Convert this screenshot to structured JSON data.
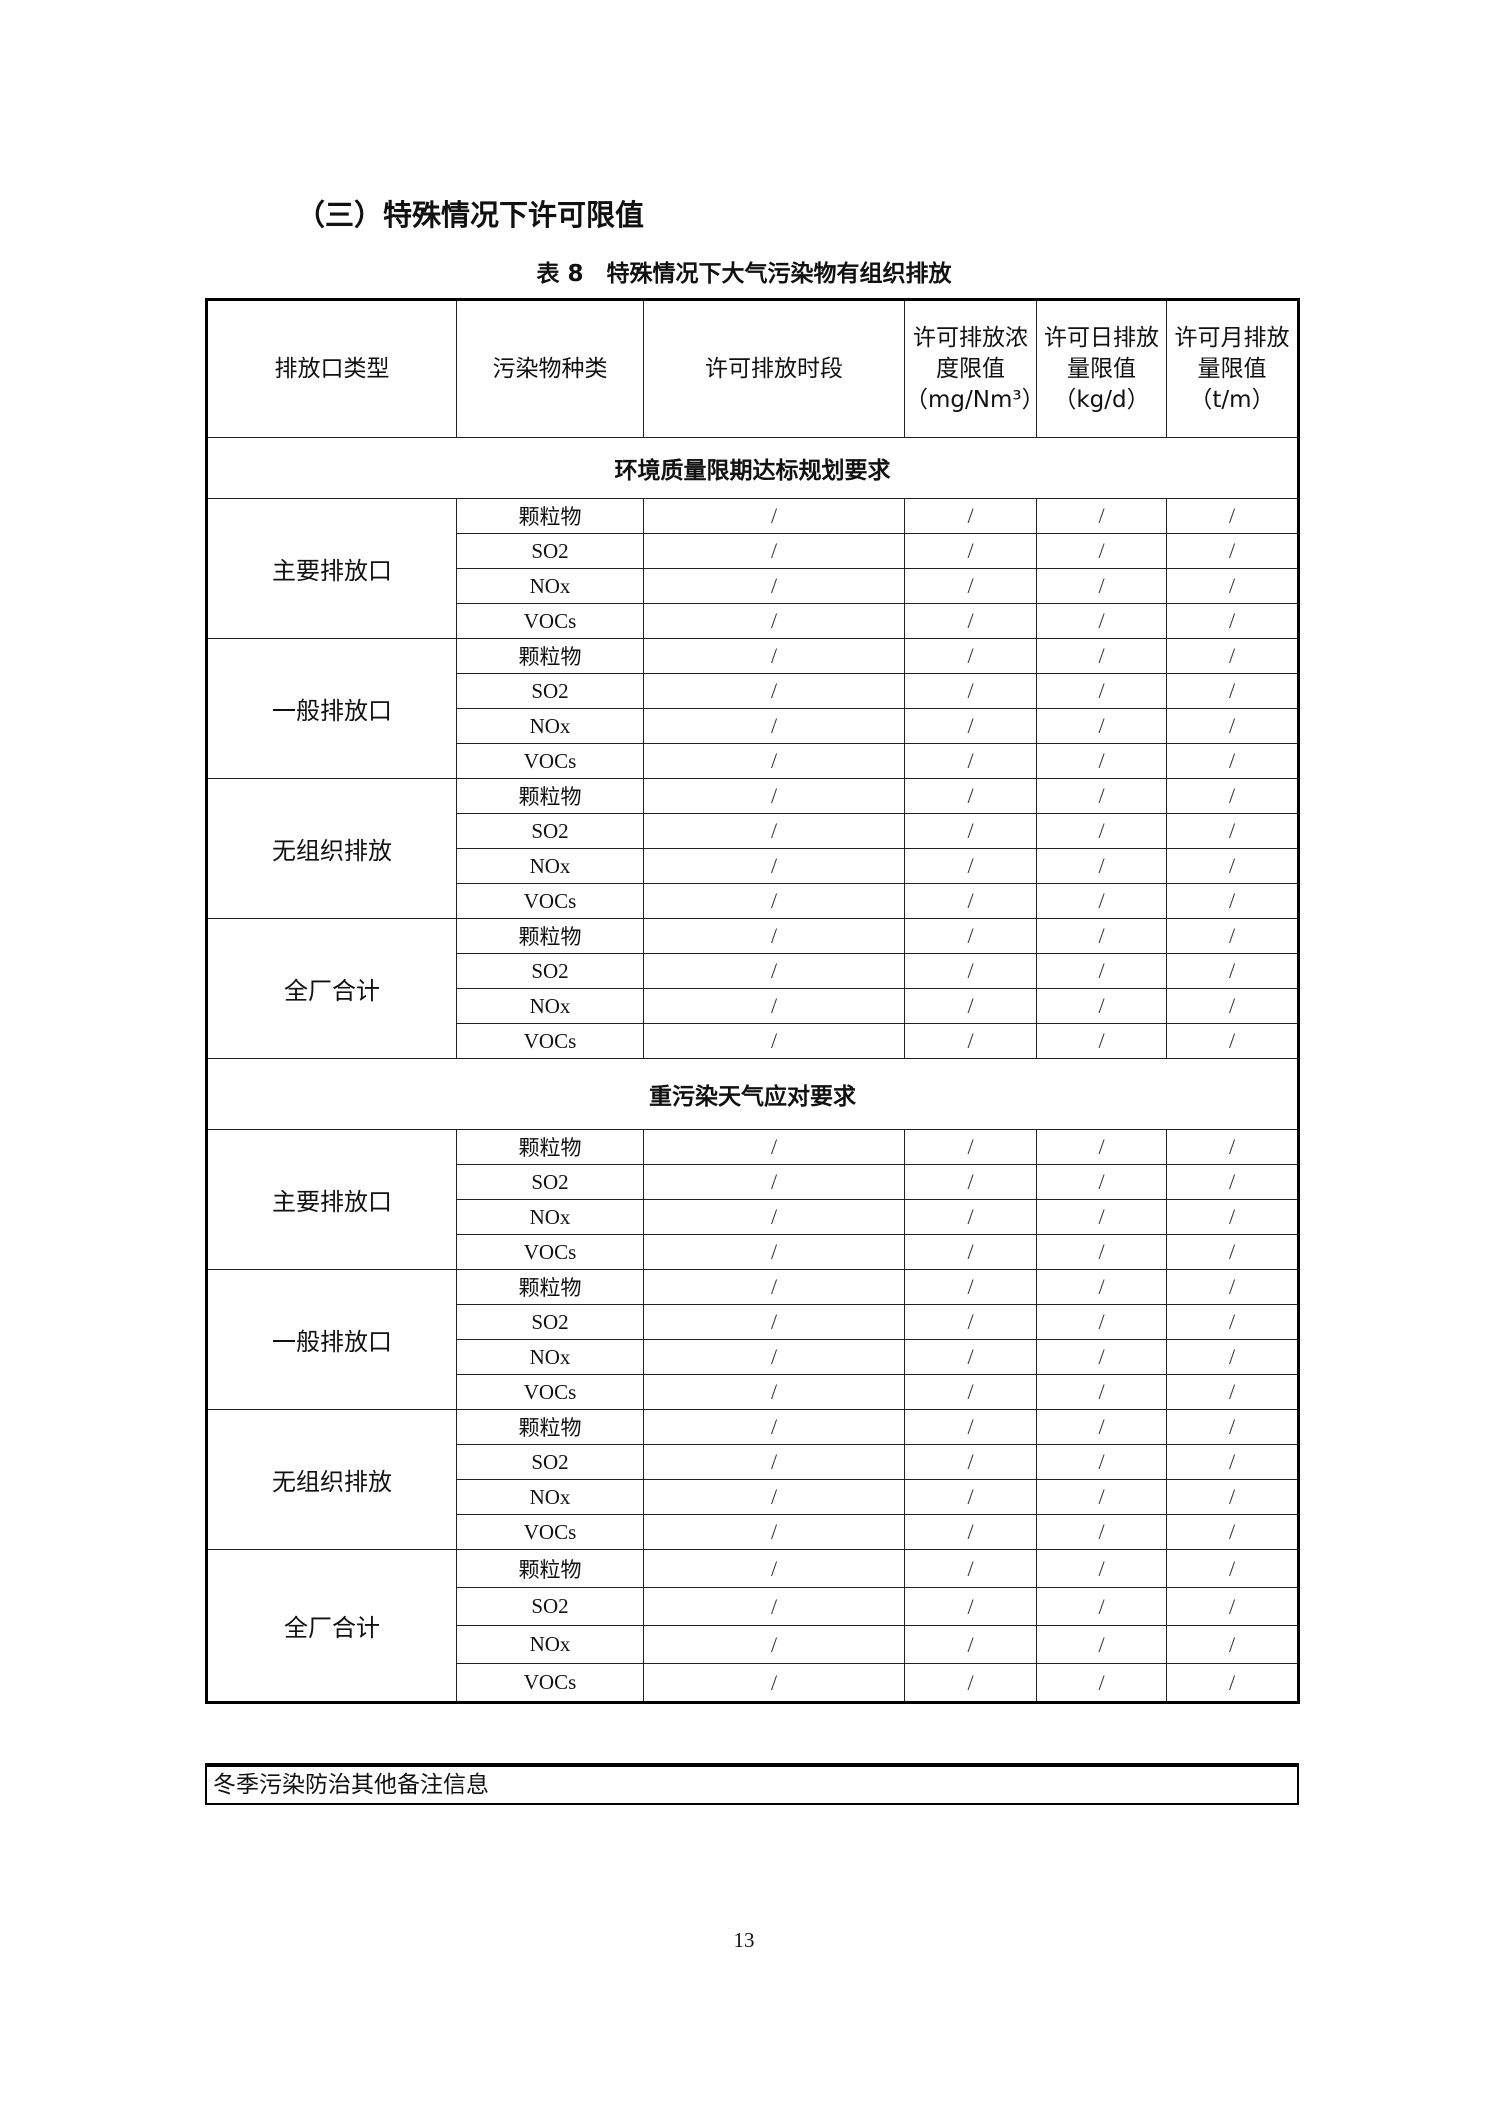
{
  "heading": "（三）特殊情况下许可限值",
  "caption": "表 8　特殊情况下大气污染物有组织排放",
  "table": {
    "headers": [
      "排放口类型",
      "污染物种类",
      "许可排放时段",
      "许可排放浓度限值（mg/Nm³）",
      "许可日排放量限值（kg/d）",
      "许可月排放量限值（t/m）"
    ],
    "sections": [
      {
        "title": "环境质量限期达标规划要求",
        "groups": [
          {
            "name": "主要排放口",
            "pollutants": [
              "颗粒物",
              "SO2",
              "NOx",
              "VOCs"
            ]
          },
          {
            "name": "一般排放口",
            "pollutants": [
              "颗粒物",
              "SO2",
              "NOx",
              "VOCs"
            ]
          },
          {
            "name": "无组织排放",
            "pollutants": [
              "颗粒物",
              "SO2",
              "NOx",
              "VOCs"
            ]
          },
          {
            "name": "全厂合计",
            "pollutants": [
              "颗粒物",
              "SO2",
              "NOx",
              "VOCs"
            ]
          }
        ]
      },
      {
        "title": "重污染天气应对要求",
        "groups": [
          {
            "name": "主要排放口",
            "pollutants": [
              "颗粒物",
              "SO2",
              "NOx",
              "VOCs"
            ]
          },
          {
            "name": "一般排放口",
            "pollutants": [
              "颗粒物",
              "SO2",
              "NOx",
              "VOCs"
            ]
          },
          {
            "name": "无组织排放",
            "pollutants": [
              "颗粒物",
              "SO2",
              "NOx",
              "VOCs"
            ]
          },
          {
            "name": "全厂合计",
            "pollutants": [
              "颗粒物",
              "SO2",
              "NOx",
              "VOCs"
            ]
          }
        ]
      }
    ],
    "cell_value": "/"
  },
  "notes_label": "冬季污染防治其他备注信息",
  "page_number": "13"
}
